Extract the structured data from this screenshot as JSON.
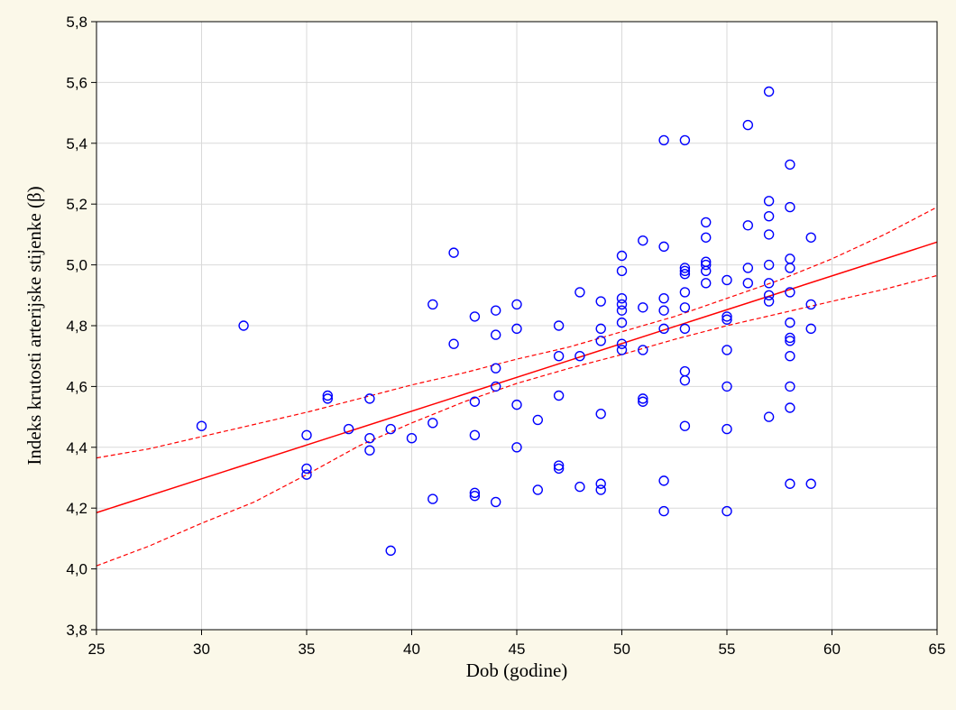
{
  "chart_data": {
    "type": "scatter",
    "xlabel": "Dob (godine)",
    "ylabel": "Indeks krutosti arterijske stijenke (β)",
    "xlim": [
      25,
      65
    ],
    "ylim": [
      3.8,
      5.8
    ],
    "x_ticks": [
      25,
      30,
      35,
      40,
      45,
      50,
      55,
      60,
      65
    ],
    "y_ticks": [
      3.8,
      4.0,
      4.2,
      4.4,
      4.6,
      4.8,
      5.0,
      5.2,
      5.4,
      5.6,
      5.8
    ],
    "decimal_separator": ",",
    "grid": true,
    "colors": {
      "points": "#0000ff",
      "regression": "#ff0000",
      "background": "#fbf8e9",
      "plot_area": "#ffffff",
      "grid": "#d9d9d9"
    },
    "points": {
      "x": [
        30,
        32,
        35,
        35,
        35,
        36,
        36,
        37,
        38,
        38,
        38,
        39,
        39,
        40,
        41,
        41,
        41,
        42,
        42,
        43,
        43,
        43,
        43,
        43,
        44,
        44,
        44,
        44,
        44,
        45,
        45,
        45,
        45,
        46,
        46,
        47,
        47,
        47,
        47,
        47,
        48,
        48,
        48,
        49,
        49,
        49,
        49,
        49,
        49,
        50,
        50,
        50,
        50,
        50,
        50,
        50,
        50,
        51,
        51,
        51,
        51,
        51,
        52,
        52,
        52,
        52,
        52,
        52,
        52,
        53,
        53,
        53,
        53,
        53,
        53,
        53,
        53,
        53,
        53,
        54,
        54,
        54,
        54,
        54,
        54,
        55,
        55,
        55,
        55,
        55,
        55,
        55,
        56,
        56,
        56,
        56,
        57,
        57,
        57,
        57,
        57,
        57,
        57,
        57,
        57,
        58,
        58,
        58,
        58,
        58,
        58,
        58,
        58,
        58,
        58,
        58,
        58,
        59,
        59,
        59,
        59
      ],
      "y": [
        4.47,
        4.8,
        4.44,
        4.33,
        4.31,
        4.57,
        4.56,
        4.46,
        4.56,
        4.43,
        4.39,
        4.46,
        4.06,
        4.43,
        4.87,
        4.48,
        4.23,
        5.04,
        4.74,
        4.83,
        4.55,
        4.44,
        4.25,
        4.24,
        4.85,
        4.77,
        4.66,
        4.6,
        4.22,
        4.87,
        4.79,
        4.54,
        4.4,
        4.49,
        4.26,
        4.8,
        4.7,
        4.57,
        4.34,
        4.33,
        4.91,
        4.7,
        4.27,
        4.88,
        4.79,
        4.75,
        4.51,
        4.28,
        4.26,
        5.03,
        4.98,
        4.89,
        4.87,
        4.85,
        4.81,
        4.74,
        4.72,
        5.08,
        4.86,
        4.72,
        4.56,
        4.55,
        5.41,
        5.06,
        4.89,
        4.85,
        4.79,
        4.29,
        4.19,
        5.41,
        4.99,
        4.98,
        4.97,
        4.91,
        4.86,
        4.79,
        4.65,
        4.62,
        4.47,
        5.14,
        5.09,
        5.01,
        5.0,
        4.98,
        4.94,
        4.95,
        4.83,
        4.82,
        4.72,
        4.6,
        4.46,
        4.19,
        5.46,
        5.13,
        4.99,
        4.94,
        5.57,
        5.21,
        5.16,
        5.1,
        5.0,
        4.94,
        4.9,
        4.88,
        4.5,
        5.33,
        5.19,
        5.02,
        4.99,
        4.91,
        4.81,
        4.76,
        4.75,
        4.7,
        4.6,
        4.53,
        4.28,
        5.09,
        4.87,
        4.79,
        4.28
      ]
    },
    "regression_line": {
      "x": [
        25,
        65
      ],
      "y": [
        4.185,
        5.075
      ]
    },
    "confidence_band_upper": {
      "x": [
        25,
        27.5,
        30,
        32.5,
        35,
        37.5,
        40,
        42.5,
        45,
        47.5,
        50,
        52.5,
        55,
        57.5,
        60,
        62.5,
        65
      ],
      "y": [
        4.365,
        4.395,
        4.435,
        4.475,
        4.515,
        4.56,
        4.605,
        4.645,
        4.69,
        4.73,
        4.78,
        4.83,
        4.89,
        4.95,
        5.02,
        5.1,
        5.19
      ]
    },
    "confidence_band_lower": {
      "x": [
        25,
        27.5,
        30,
        32.5,
        35,
        37.5,
        40,
        42.5,
        45,
        47.5,
        50,
        52.5,
        55,
        57.5,
        60,
        62.5,
        65
      ],
      "y": [
        4.01,
        4.075,
        4.15,
        4.22,
        4.31,
        4.405,
        4.48,
        4.55,
        4.61,
        4.66,
        4.705,
        4.755,
        4.8,
        4.84,
        4.88,
        4.92,
        4.965
      ]
    }
  }
}
